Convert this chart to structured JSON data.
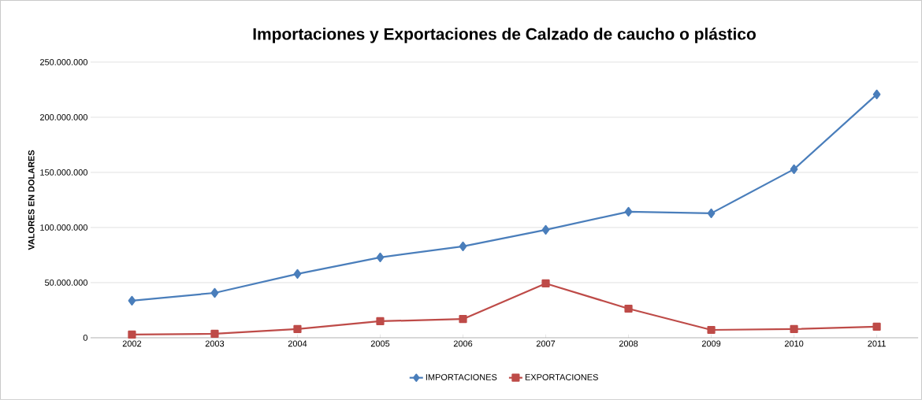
{
  "chart_data": {
    "type": "line",
    "title": "Importaciones y Exportaciones de Calzado de caucho o plástico",
    "ylabel": "VALORES EN DOLARES",
    "categories": [
      "2002",
      "2003",
      "2004",
      "2005",
      "2006",
      "2007",
      "2008",
      "2009",
      "2010",
      "2011"
    ],
    "series": [
      {
        "name": "IMPORTACIONES",
        "color": "#4a7ebb",
        "marker": "diamond",
        "values": [
          33600000,
          40700000,
          57900000,
          72900000,
          82900000,
          97900000,
          114300000,
          112900000,
          152900000,
          220700000
        ]
      },
      {
        "name": "EXPORTACIONES",
        "color": "#be4b48",
        "marker": "square",
        "values": [
          2900000,
          3600000,
          7900000,
          15000000,
          17000000,
          49300000,
          26400000,
          7100000,
          7900000,
          10000000
        ]
      }
    ],
    "ylim": [
      0,
      250000000
    ],
    "yticks": [
      {
        "value": 0,
        "label": "0"
      },
      {
        "value": 50000000,
        "label": "50.000.000"
      },
      {
        "value": 100000000,
        "label": "100.000.000"
      },
      {
        "value": 150000000,
        "label": "150.000.000"
      },
      {
        "value": 200000000,
        "label": "200.000.000"
      },
      {
        "value": 250000000,
        "label": "250.000.000"
      }
    ],
    "grid": "y",
    "legend": "bottom",
    "line_style": "solid"
  }
}
